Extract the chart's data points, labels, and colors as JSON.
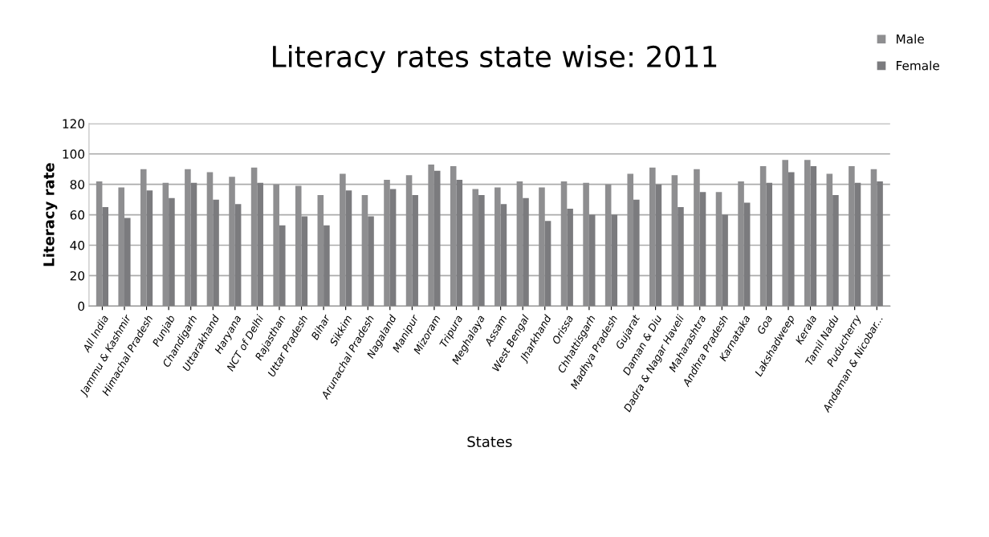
{
  "chart_data": {
    "type": "bar",
    "title": "Literacy rates state wise: 2011",
    "xlabel": "States",
    "ylabel": "Literacy rate",
    "categories": [
      "All India",
      "Jammu & Kashmir",
      "Himachal Pradesh",
      "Punjab",
      "Chandigarh",
      "Uttarakhand",
      "Haryana",
      "NCT of Delhi",
      "Rajasthan",
      "Uttar Pradesh",
      "Bihar",
      "Sikkim",
      "Arunachal Pradesh",
      "Nagaland",
      "Manipur",
      "Mizoram",
      "Tripura",
      "Meghalaya",
      "Assam",
      "West Bengal",
      "Jharkhand",
      "Orissa",
      "Chhattisgarh",
      "Madhya Pradesh",
      "Gujarat",
      "Daman & Diu",
      "Dadra & Nagar Haveli",
      "Maharashtra",
      "Andhra Pradesh",
      "Karnataka",
      "Goa",
      "Lakshadweep",
      "Kerala",
      "Tamil Nadu",
      "Puducherry",
      "Andaman & Nicobar..."
    ],
    "series": [
      {
        "name": "Male",
        "color": "#8e8e90",
        "values": [
          82,
          78,
          90,
          81,
          90,
          88,
          85,
          91,
          80,
          79,
          73,
          87,
          73,
          83,
          86,
          93,
          92,
          77,
          78,
          82,
          78,
          82,
          81,
          80,
          87,
          91,
          86,
          90,
          75,
          82,
          92,
          96,
          96,
          87,
          92,
          90
        ]
      },
      {
        "name": "Female",
        "color": "#7b7b7e",
        "values": [
          65,
          58,
          76,
          71,
          81,
          70,
          67,
          81,
          53,
          59,
          53,
          76,
          59,
          77,
          73,
          89,
          83,
          73,
          67,
          71,
          56,
          64,
          60,
          60,
          70,
          80,
          65,
          75,
          60,
          68,
          81,
          88,
          92,
          73,
          81,
          82
        ]
      }
    ],
    "ylim": [
      0,
      120
    ],
    "yticks": [
      0,
      20,
      40,
      60,
      80,
      100,
      120
    ],
    "grid": "y",
    "legend": "top right"
  }
}
